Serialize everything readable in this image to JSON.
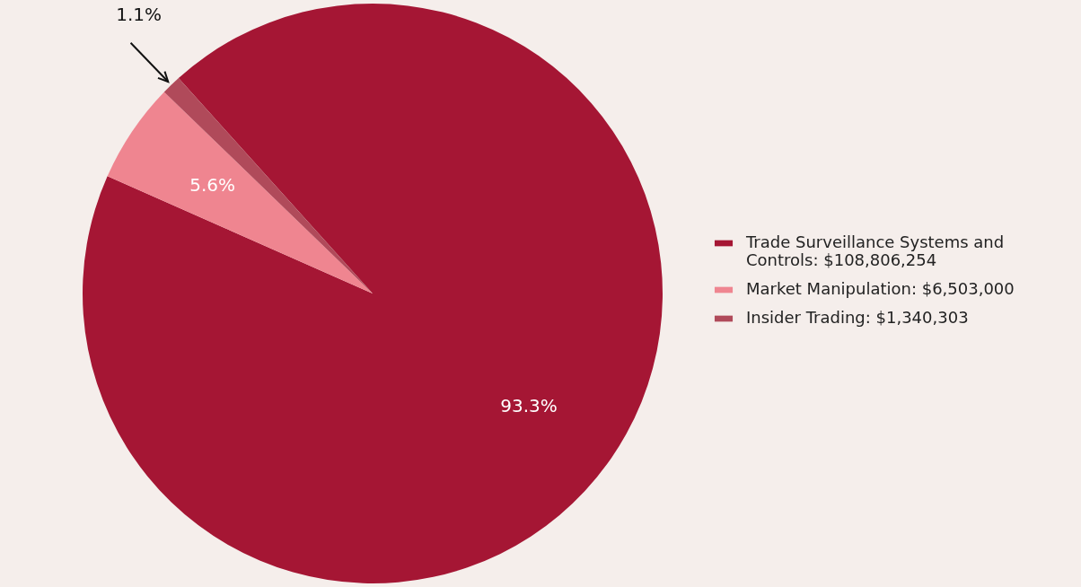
{
  "chart_data": {
    "type": "pie",
    "categories": [
      "Trade Surveillance Systems and Controls: $108,806,254",
      "Market Manipulation: $6,503,000",
      "Insider Trading: $1,340,303"
    ],
    "values": [
      93.3,
      5.6,
      1.1
    ],
    "colors": [
      "#a51634",
      "#ef8590",
      "#b04a5a"
    ],
    "value_labels": [
      "93.3%",
      "5.6%",
      "1.1%"
    ],
    "legend": "right"
  }
}
